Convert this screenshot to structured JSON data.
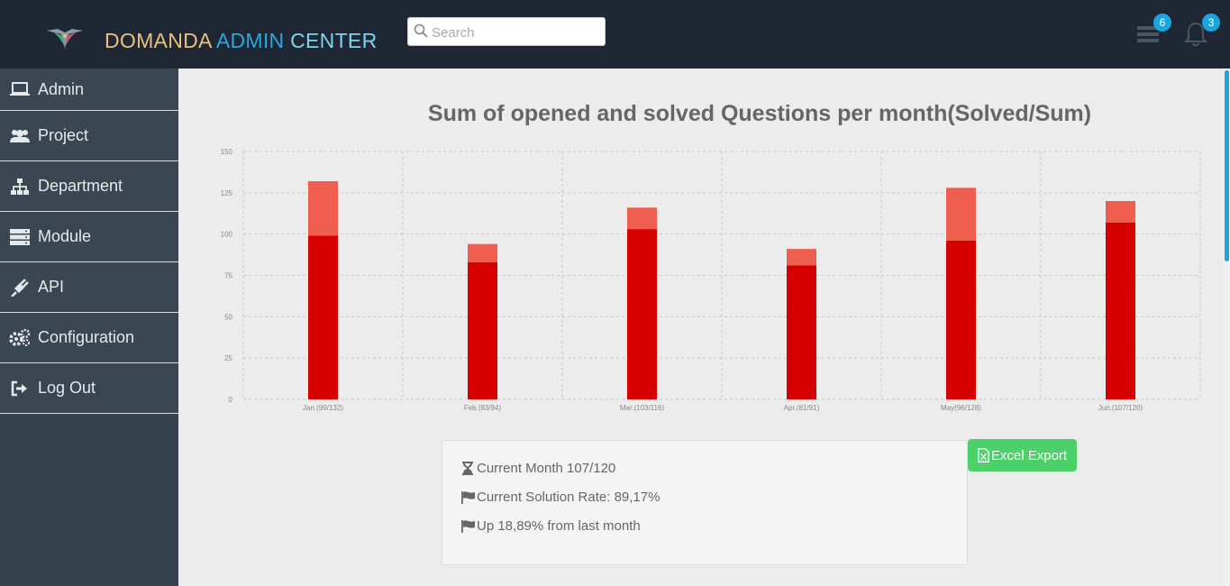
{
  "header": {
    "brand_part1": "DOMANDA ",
    "brand_part2": "ADMIN ",
    "brand_part3": "CENTER",
    "search_placeholder": "Search",
    "messages_badge": "6",
    "notifications_badge": "3"
  },
  "sidebar": {
    "items": [
      {
        "label": "Admin",
        "icon": "laptop-icon"
      },
      {
        "label": "Project",
        "icon": "users-icon"
      },
      {
        "label": "Department",
        "icon": "sitemap-icon"
      },
      {
        "label": "Module",
        "icon": "server-icon"
      },
      {
        "label": "API",
        "icon": "plug-icon"
      },
      {
        "label": "Configuration",
        "icon": "gears-icon"
      },
      {
        "label": "Log Out",
        "icon": "sign-out-icon"
      }
    ]
  },
  "main": {
    "info": {
      "current_month": "Current Month 107/120",
      "solution_rate": "Current Solution Rate: 89,17%",
      "change": "Up 18,89% from last month"
    },
    "export_label": "Excel Export"
  },
  "colors": {
    "solved": "#d60000",
    "unsolved": "#f05e50",
    "accent": "#1ba4e0",
    "export": "#4cd06a"
  },
  "chart_data": {
    "type": "bar",
    "stacked": true,
    "title": "Sum of opened and solved Questions per month(Solved/Sum)",
    "categories": [
      "Jan.(99/132)",
      "Feb.(83/94)",
      "Mar.(103/116)",
      "Apr.(81/91)",
      "May(96/128)",
      "Jun.(107/120)"
    ],
    "series": [
      {
        "values": [
          99,
          83,
          103,
          81,
          96,
          107
        ]
      },
      {
        "values": [
          33,
          11,
          13,
          10,
          32,
          13
        ]
      }
    ],
    "ylim": [
      0,
      150
    ],
    "yticks": [
      0,
      25,
      50,
      75,
      100,
      125,
      150
    ],
    "grid": true
  }
}
